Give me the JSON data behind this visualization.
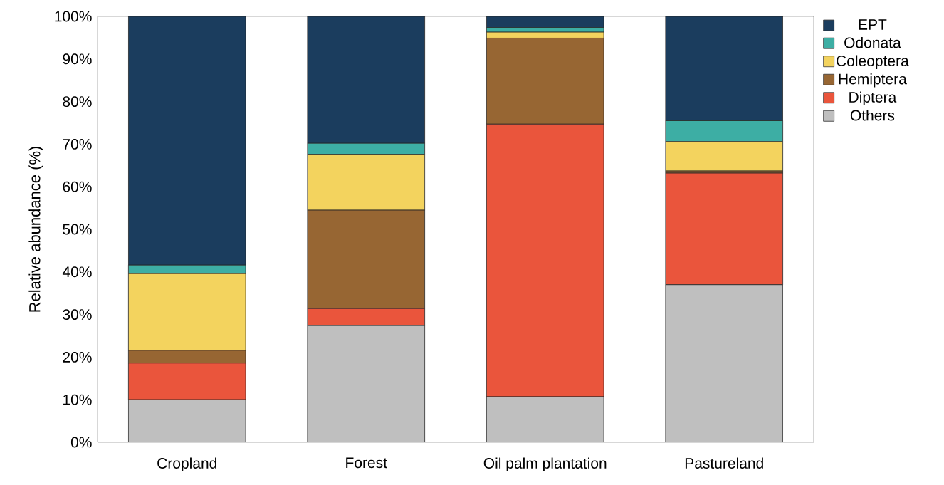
{
  "chart_data": {
    "type": "bar",
    "stacked": true,
    "ylabel": "Relative abundance (%)",
    "categories": [
      "Cropland",
      "Forest",
      "Oil palm plantation",
      "Pastureland"
    ],
    "series": [
      {
        "name": "Others",
        "color": "#bfbfbf",
        "values": [
          10,
          27.4,
          10.7,
          37
        ]
      },
      {
        "name": "Diptera",
        "color": "#ea553c",
        "values": [
          8.6,
          4,
          64,
          26.2
        ]
      },
      {
        "name": "Hemiptera",
        "color": "#976633",
        "values": [
          3,
          23.1,
          20.2,
          0.5
        ]
      },
      {
        "name": "Coleoptera",
        "color": "#f3d35e",
        "values": [
          18,
          13.1,
          1.4,
          6.9
        ]
      },
      {
        "name": "Odonata",
        "color": "#3daea4",
        "values": [
          2,
          2.6,
          1.1,
          4.9
        ]
      },
      {
        "name": "EPT",
        "color": "#1b3d5e",
        "values": [
          58.4,
          29.8,
          2.6,
          24.5
        ]
      }
    ],
    "ylim": [
      0,
      100
    ],
    "yticks": [
      {
        "value": 0,
        "label": "0%"
      },
      {
        "value": 10,
        "label": "10%"
      },
      {
        "value": 20,
        "label": "20%"
      },
      {
        "value": 30,
        "label": "30%"
      },
      {
        "value": 40,
        "label": "40%"
      },
      {
        "value": 50,
        "label": "50%"
      },
      {
        "value": 60,
        "label": "60%"
      },
      {
        "value": 70,
        "label": "70%"
      },
      {
        "value": 80,
        "label": "80%"
      },
      {
        "value": 90,
        "label": "90%"
      },
      {
        "value": 100,
        "label": "100%"
      }
    ],
    "legend": "top right"
  }
}
